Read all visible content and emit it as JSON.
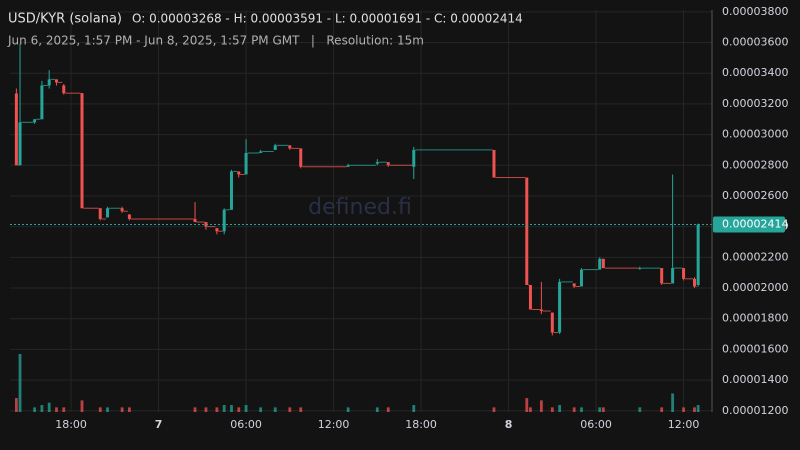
{
  "chart_data": {
    "type": "candlestick",
    "title": "USD/KYR (solana)",
    "ohlc_text": "O: 0.00003268 - H: 0.00003591 - L: 0.00001691 - C: 0.00002414",
    "subtitle": "Jun 6, 2025, 1:57 PM - Jun 8, 2025, 1:57 PM GMT   |   Resolution: 15m",
    "watermark": "defined.fi",
    "last_price_label": "0.00002414",
    "up_color": "#26a69a",
    "down_color": "#ef5350",
    "grid": true,
    "x": [
      "2025-06-06T14:15",
      "2025-06-06T14:30",
      "2025-06-06T15:30",
      "2025-06-06T16:00",
      "2025-06-06T16:30",
      "2025-06-06T17:00",
      "2025-06-06T17:30",
      "2025-06-06T18:45",
      "2025-06-06T20:00",
      "2025-06-06T20:30",
      "2025-06-06T21:30",
      "2025-06-06T22:00",
      "2025-06-07T02:30",
      "2025-06-07T03:15",
      "2025-06-07T04:00",
      "2025-06-07T04:30",
      "2025-06-07T05:00",
      "2025-06-07T05:30",
      "2025-06-07T06:00",
      "2025-06-07T07:00",
      "2025-06-07T08:00",
      "2025-06-07T09:00",
      "2025-06-07T09:45",
      "2025-06-07T13:00",
      "2025-06-07T15:00",
      "2025-06-07T15:45",
      "2025-06-07T17:30",
      "2025-06-07T23:00",
      "2025-06-08T01:15",
      "2025-06-08T01:30",
      "2025-06-08T02:15",
      "2025-06-08T03:00",
      "2025-06-08T03:30",
      "2025-06-08T04:30",
      "2025-06-08T05:00",
      "2025-06-08T06:15",
      "2025-06-08T06:30",
      "2025-06-08T09:00",
      "2025-06-08T10:30",
      "2025-06-08T11:15",
      "2025-06-08T12:00",
      "2025-06-08T12:45",
      "2025-06-08T13:00"
    ],
    "open": [
      3.268e-05,
      2.8e-05,
      3.08e-05,
      3.1e-05,
      3.32e-05,
      3.36e-05,
      3.32e-05,
      3.27e-05,
      2.52e-05,
      2.46e-05,
      2.52e-05,
      2.48e-05,
      2.45e-05,
      2.43e-05,
      2.39e-05,
      2.37e-05,
      2.51e-05,
      2.76e-05,
      2.74e-05,
      2.88e-05,
      2.9e-05,
      2.93e-05,
      2.91e-05,
      2.79e-05,
      2.81e-05,
      2.82e-05,
      2.79e-05,
      2.9e-05,
      2.72e-05,
      2.02e-05,
      1.86e-05,
      1.84e-05,
      1.71e-05,
      2.03e-05,
      2.01e-05,
      2.12e-05,
      2.19e-05,
      2.13e-05,
      2.13e-05,
      2.03e-05,
      2.13e-05,
      2.06e-05,
      2.02e-05
    ],
    "high": [
      3.3e-05,
      3.591e-05,
      3.1e-05,
      3.35e-05,
      3.42e-05,
      3.36e-05,
      3.33e-05,
      3.27e-05,
      2.52e-05,
      2.53e-05,
      2.53e-05,
      2.48e-05,
      2.56e-05,
      2.43e-05,
      2.39e-05,
      2.52e-05,
      2.77e-05,
      2.76e-05,
      2.97e-05,
      2.9e-05,
      2.94e-05,
      2.93e-05,
      2.91e-05,
      2.81e-05,
      2.84e-05,
      2.82e-05,
      2.92e-05,
      2.9e-05,
      2.72e-05,
      2.02e-05,
      2.04e-05,
      1.84e-05,
      2.06e-05,
      2.03e-05,
      2.13e-05,
      2.2e-05,
      2.19e-05,
      2.14e-05,
      2.13e-05,
      2.74e-05,
      2.13e-05,
      2.07e-05,
      2.42e-05
    ],
    "low": [
      2.8e-05,
      2.8e-05,
      3.07e-05,
      3.1e-05,
      3.3e-05,
      3.32e-05,
      3.26e-05,
      2.52e-05,
      2.44e-05,
      2.46e-05,
      2.49e-05,
      2.44e-05,
      2.43e-05,
      2.38e-05,
      2.35e-05,
      2.35e-05,
      2.51e-05,
      2.72e-05,
      2.74e-05,
      2.88e-05,
      2.9e-05,
      2.9e-05,
      2.78e-05,
      2.79e-05,
      2.8e-05,
      2.79e-05,
      2.71e-05,
      2.72e-05,
      2.02e-05,
      1.86e-05,
      1.83e-05,
      1.691e-05,
      1.7e-05,
      2e-05,
      2.01e-05,
      2.12e-05,
      2.13e-05,
      2.12e-05,
      2.02e-05,
      2.03e-05,
      2.05e-05,
      2e-05,
      2.01e-05
    ],
    "close": [
      2.8e-05,
      3.08e-05,
      3.1e-05,
      3.32e-05,
      3.36e-05,
      3.34e-05,
      3.27e-05,
      2.52e-05,
      2.45e-05,
      2.52e-05,
      2.5e-05,
      2.45e-05,
      2.43e-05,
      2.4e-05,
      2.37e-05,
      2.51e-05,
      2.76e-05,
      2.74e-05,
      2.88e-05,
      2.89e-05,
      2.93e-05,
      2.91e-05,
      2.79e-05,
      2.8e-05,
      2.82e-05,
      2.8e-05,
      2.9e-05,
      2.72e-05,
      2.02e-05,
      1.86e-05,
      1.85e-05,
      1.71e-05,
      2.04e-05,
      2.01e-05,
      2.12e-05,
      2.19e-05,
      2.13e-05,
      2.13e-05,
      2.03e-05,
      2.13e-05,
      2.06e-05,
      2.01e-05,
      2.414e-05
    ],
    "volume": [
      6,
      25,
      2,
      3,
      4,
      2,
      2,
      5,
      2,
      2,
      2,
      2,
      2,
      2,
      2,
      3,
      3,
      2,
      3,
      2,
      2,
      2,
      2,
      2,
      2,
      2,
      3,
      2,
      6,
      2,
      5,
      2,
      3,
      2,
      2,
      2,
      2,
      2,
      2,
      8,
      2,
      2,
      3
    ],
    "xlim": [
      "2025-06-06T13:57",
      "2025-06-08T13:57"
    ],
    "xticks": [
      {
        "value": "2025-06-06T18:00",
        "label": "18:00"
      },
      {
        "value": "2025-06-07T00:00",
        "label": "7"
      },
      {
        "value": "2025-06-07T06:00",
        "label": "06:00"
      },
      {
        "value": "2025-06-07T12:00",
        "label": "12:00"
      },
      {
        "value": "2025-06-07T18:00",
        "label": "18:00"
      },
      {
        "value": "2025-06-08T00:00",
        "label": "8"
      },
      {
        "value": "2025-06-08T06:00",
        "label": "06:00"
      },
      {
        "value": "2025-06-08T12:00",
        "label": "12:00"
      }
    ],
    "ylim": [
      1.192e-05,
      3.812e-05
    ],
    "yticks": [
      {
        "value": 1.2e-05,
        "label": "0.00001200"
      },
      {
        "value": 1.4e-05,
        "label": "0.00001400"
      },
      {
        "value": 1.6e-05,
        "label": "0.00001600"
      },
      {
        "value": 1.8e-05,
        "label": "0.00001800"
      },
      {
        "value": 2e-05,
        "label": "0.00002000"
      },
      {
        "value": 2.2e-05,
        "label": "0.00002200"
      },
      {
        "value": 2.4e-05,
        "label": "0.00002400"
      },
      {
        "value": 2.6e-05,
        "label": "0.00002600"
      },
      {
        "value": 2.8e-05,
        "label": "0.00002800"
      },
      {
        "value": 3e-05,
        "label": "0.00003000"
      },
      {
        "value": 3.2e-05,
        "label": "0.00003200"
      },
      {
        "value": 3.4e-05,
        "label": "0.00003400"
      },
      {
        "value": 3.6e-05,
        "label": "0.00003600"
      },
      {
        "value": 3.8e-05,
        "label": "0.00003800"
      }
    ]
  }
}
